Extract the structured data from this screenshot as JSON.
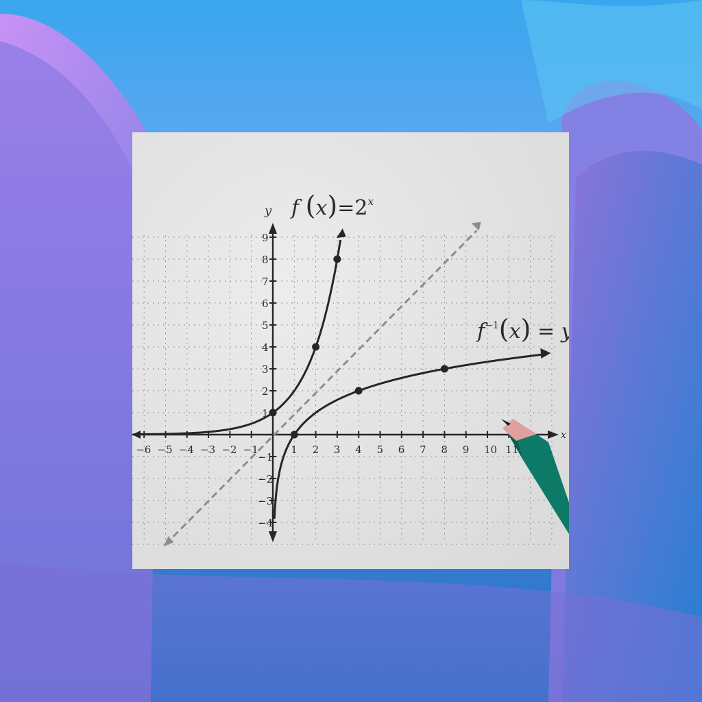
{
  "colors": {
    "bg_top": "#3aa6ee",
    "bg_bottom": "#0472c0",
    "purple": "#8f73e0",
    "pink": "#d88ff6",
    "paper": "#e6e6e6",
    "ink": "#2a2a2a",
    "dashed": "#8e8e8e",
    "pencil_green": "#0c7a66",
    "pencil_wood": "#e0a0a0"
  },
  "graph": {
    "y_axis_label": "y",
    "x_axis_label": "x",
    "f_label": {
      "name": "f",
      "lp": "(",
      "var": "x",
      "rp": ")",
      "eq": "=",
      "base": "2",
      "exp": "x"
    },
    "finv_label": {
      "name": "f",
      "exp": "−1",
      "lp": "(",
      "var": "x",
      "rp": ")",
      "eq": "=",
      "rhs": "y"
    },
    "x_ticks": [
      "−6",
      "−5",
      "−4",
      "−3",
      "−2",
      "−1",
      "1",
      "2",
      "3",
      "4",
      "5",
      "6",
      "7",
      "8",
      "9",
      "10",
      "11"
    ],
    "x_tick_values": [
      -6,
      -5,
      -4,
      -3,
      -2,
      -1,
      1,
      2,
      3,
      4,
      5,
      6,
      7,
      8,
      9,
      10,
      11
    ],
    "y_ticks": [
      "9",
      "8",
      "7",
      "6",
      "5",
      "4",
      "3",
      "2",
      "1",
      "−1",
      "−2",
      "−3",
      "−4"
    ],
    "y_tick_values": [
      9,
      8,
      7,
      6,
      5,
      4,
      3,
      2,
      1,
      -1,
      -2,
      -3,
      -4
    ],
    "f_points": [
      [
        0,
        1
      ],
      [
        2,
        4
      ],
      [
        3,
        8
      ]
    ],
    "finv_points": [
      [
        1,
        0
      ],
      [
        4,
        2
      ],
      [
        8,
        3
      ]
    ]
  }
}
